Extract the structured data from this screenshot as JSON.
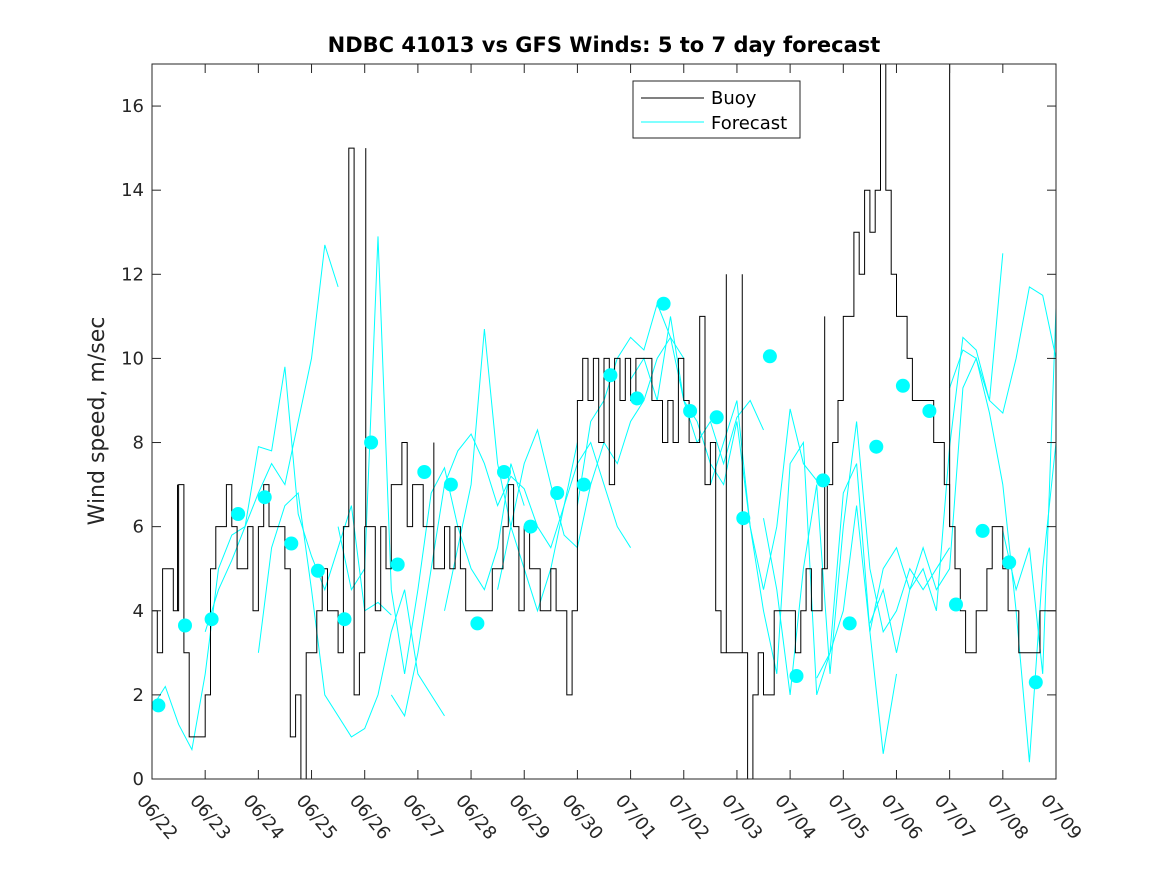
{
  "chart_data": {
    "type": "line",
    "title": "NDBC 41013 vs GFS Winds: 5 to 7 day forecast",
    "ylabel": "Wind speed, m/sec",
    "xlabel": "",
    "ylim": [
      0,
      17
    ],
    "yticks": [
      0,
      2,
      4,
      6,
      8,
      10,
      12,
      14,
      16
    ],
    "x_tick_labels": [
      "06/22",
      "06/23",
      "06/24",
      "06/25",
      "06/26",
      "06/27",
      "06/28",
      "06/29",
      "06/30",
      "07/01",
      "07/02",
      "07/03",
      "07/04",
      "07/05",
      "07/06",
      "07/07",
      "07/08",
      "07/09"
    ],
    "xlim_days": [
      0,
      17
    ],
    "legend": {
      "placement": "top-center",
      "entries": [
        "Buoy",
        "Forecast"
      ]
    },
    "colors": {
      "buoy": "#000000",
      "forecast": "#00ffff",
      "axes": "#262626"
    },
    "buoy_series": {
      "name": "Buoy",
      "x_days": [
        0,
        0.1,
        0.2,
        0.3,
        0.4,
        0.5,
        0.6,
        0.7,
        0.8,
        0.9,
        1.0,
        1.1,
        1.2,
        1.3,
        1.4,
        1.5,
        1.6,
        1.7,
        1.8,
        1.9,
        2.0,
        2.1,
        2.2,
        2.3,
        2.4,
        2.5,
        2.6,
        2.7,
        2.8,
        2.9,
        3.0,
        3.1,
        3.2,
        3.3,
        3.4,
        3.5,
        3.6,
        3.7,
        3.8,
        3.9,
        4.0,
        4.1,
        4.2,
        4.3,
        4.4,
        4.5,
        4.6,
        4.7,
        4.8,
        4.9,
        5.0,
        5.1,
        5.2,
        5.3,
        5.4,
        5.5,
        5.6,
        5.7,
        5.8,
        5.9,
        6.0,
        6.1,
        6.2,
        6.3,
        6.4,
        6.5,
        6.6,
        6.7,
        6.8,
        6.9,
        7.0,
        7.1,
        7.2,
        7.3,
        7.4,
        7.5,
        7.6,
        7.7,
        7.8,
        7.9,
        8.0,
        8.1,
        8.2,
        8.3,
        8.4,
        8.5,
        8.6,
        8.7,
        8.8,
        8.9,
        9.0,
        9.1,
        9.2,
        9.3,
        9.4,
        9.5,
        9.6,
        9.7,
        9.8,
        9.9,
        10.0,
        10.1,
        10.2,
        10.3,
        10.4,
        10.5,
        10.6,
        10.7,
        10.8,
        10.9,
        11.0,
        11.1,
        11.2,
        11.3,
        11.4,
        11.5,
        11.6,
        11.7,
        11.8,
        11.9,
        12.0,
        12.1,
        12.2,
        12.3,
        12.4,
        12.5,
        12.6,
        12.7,
        12.8,
        12.9,
        13.0,
        13.1,
        13.2,
        13.3,
        13.4,
        13.5,
        13.6,
        13.7,
        13.8,
        13.9,
        14.0,
        14.1,
        14.2,
        14.3,
        14.4,
        14.5,
        14.6,
        14.7,
        14.8,
        14.9,
        15.0,
        15.1,
        15.2,
        15.3,
        15.4,
        15.5,
        15.6,
        15.7,
        15.8,
        15.9,
        16.0,
        16.1,
        16.2,
        16.3,
        16.4,
        16.5,
        16.6,
        16.7,
        16.8,
        16.9
      ],
      "values": [
        4,
        3,
        5,
        5,
        4,
        7,
        3,
        1,
        1,
        1,
        2,
        5,
        6,
        6,
        7,
        6,
        5,
        5,
        6,
        4,
        6,
        7,
        6,
        6,
        6,
        5,
        1,
        2,
        0,
        3,
        3,
        4,
        5,
        4,
        4,
        3,
        6,
        15,
        2,
        3,
        6,
        6,
        4,
        6,
        5,
        7,
        7,
        8,
        6,
        7,
        7,
        6,
        6,
        5,
        5,
        6,
        5,
        6,
        5,
        4,
        4,
        4,
        4,
        4,
        5,
        5,
        6,
        7,
        6,
        4,
        6,
        5,
        5,
        4,
        4,
        5,
        4,
        4,
        2,
        4,
        9,
        10,
        9,
        10,
        8,
        10,
        7,
        10,
        9,
        10,
        9,
        10,
        10,
        10,
        9,
        9,
        8,
        9,
        8,
        10,
        9,
        8,
        8,
        11,
        7,
        8,
        4,
        3,
        3,
        3,
        3,
        3,
        0,
        2,
        3,
        2,
        2,
        4,
        4,
        4,
        4,
        3,
        4,
        5,
        4,
        4,
        5,
        7,
        8,
        9,
        11,
        11,
        13,
        12,
        14,
        13,
        14,
        17,
        14,
        12,
        11,
        11,
        10,
        9,
        9,
        9,
        9,
        8,
        8,
        7,
        6,
        5,
        4,
        3,
        3,
        4,
        4,
        5,
        6,
        6,
        5,
        4,
        4,
        3,
        3,
        3,
        3,
        4,
        4,
        4
      ],
      "spikes": [
        {
          "x_day": 0.48,
          "value": 7
        },
        {
          "x_day": 4.02,
          "value": 15
        },
        {
          "x_day": 5.3,
          "value": 8
        },
        {
          "x_day": 10.8,
          "value": 12
        },
        {
          "x_day": 11.1,
          "value": 12
        },
        {
          "x_day": 12.65,
          "value": 11
        },
        {
          "x_day": 15.0,
          "value": 17
        }
      ]
    },
    "forecast_series": [
      {
        "x_days": [
          0,
          0.25,
          0.5,
          0.75,
          1.0,
          1.25,
          1.5,
          1.75,
          2.0,
          2.25,
          2.5,
          2.75,
          3.0,
          3.25,
          3.5
        ],
        "values": [
          1.7,
          2.2,
          1.3,
          0.7,
          2.5,
          5.0,
          5.8,
          6.0,
          6.8,
          7.5,
          7.0,
          8.5,
          10.0,
          12.7,
          11.7
        ]
      },
      {
        "x_days": [
          1.0,
          1.25,
          1.5,
          1.75,
          2.0,
          2.25,
          2.5,
          2.75,
          3.0,
          3.25,
          3.5,
          3.75,
          4.0,
          4.25,
          4.5
        ],
        "values": [
          3.5,
          4.5,
          5.2,
          6.0,
          7.9,
          7.8,
          9.8,
          6.3,
          5.3,
          4.5,
          5.5,
          6.5,
          4.0,
          4.2,
          3.9
        ]
      },
      {
        "x_days": [
          2.0,
          2.25,
          2.5,
          2.75,
          3.0,
          3.25,
          3.5,
          3.75,
          4.0,
          4.25,
          4.5,
          4.75,
          5.0,
          5.25,
          5.5
        ],
        "values": [
          3.0,
          5.5,
          6.5,
          6.8,
          4.5,
          2.0,
          1.5,
          1.0,
          1.2,
          2.0,
          3.5,
          4.5,
          2.5,
          2.0,
          1.5
        ]
      },
      {
        "x_days": [
          3.5,
          3.75,
          4.0,
          4.25,
          4.5,
          4.75,
          5.0,
          5.25,
          5.5,
          5.75,
          6.0,
          6.25,
          6.5,
          6.75,
          7.0
        ],
        "values": [
          6.0,
          4.5,
          5.0,
          12.9,
          4.5,
          2.5,
          4.5,
          6.8,
          7.4,
          6.0,
          5.0,
          4.5,
          5.5,
          7.5,
          6.5
        ]
      },
      {
        "x_days": [
          4.5,
          4.75,
          5.0,
          5.25,
          5.5,
          5.75,
          6.0,
          6.25,
          6.5,
          6.75,
          7.0,
          7.25,
          7.5,
          7.75,
          8.0
        ],
        "values": [
          2.0,
          1.5,
          3.0,
          5.0,
          7.0,
          7.8,
          8.2,
          7.5,
          6.5,
          7.2,
          6.9,
          6.0,
          5.5,
          6.5,
          8.0
        ]
      },
      {
        "x_days": [
          5.5,
          5.75,
          6.0,
          6.25,
          6.5,
          6.75,
          7.0,
          7.25,
          7.5,
          7.75,
          8.0,
          8.25,
          8.5,
          8.75,
          9.0
        ],
        "values": [
          4.0,
          5.5,
          7.0,
          10.7,
          7.5,
          6.0,
          5.0,
          4.0,
          5.0,
          6.5,
          7.5,
          8.0,
          7.0,
          6.0,
          5.5
        ]
      },
      {
        "x_days": [
          6.5,
          6.75,
          7.0,
          7.25,
          7.5,
          7.75,
          8.0,
          8.25,
          8.5,
          8.75,
          9.0,
          9.25,
          9.5,
          9.75,
          10.0
        ],
        "values": [
          4.5,
          6.0,
          7.5,
          8.3,
          7.0,
          5.8,
          5.5,
          7.0,
          8.0,
          7.5,
          8.5,
          9.0,
          10.0,
          10.5,
          10.0
        ]
      },
      {
        "x_days": [
          8.0,
          8.25,
          8.5,
          8.75,
          9.0,
          9.25,
          9.5,
          9.75,
          10.0,
          10.25,
          10.5,
          10.75,
          11.0,
          11.25,
          11.5
        ],
        "values": [
          6.5,
          8.5,
          9.0,
          10.0,
          10.5,
          10.2,
          11.3,
          10.5,
          9.0,
          8.0,
          8.5,
          7.5,
          8.6,
          9.0,
          8.3
        ]
      },
      {
        "x_days": [
          9.0,
          9.25,
          9.5,
          9.75,
          10.0,
          10.25,
          10.5,
          10.75,
          11.0,
          11.25,
          11.5,
          11.75,
          12.0,
          12.25,
          12.5
        ],
        "values": [
          9.5,
          10.0,
          9.0,
          11.0,
          9.0,
          8.5,
          7.5,
          7.0,
          8.5,
          6.0,
          4.5,
          6.0,
          8.8,
          7.5,
          7.1
        ]
      },
      {
        "x_days": [
          10.5,
          10.75,
          11.0,
          11.25,
          11.5,
          11.75,
          12.0,
          12.25,
          12.5,
          12.75,
          13.0,
          13.25,
          13.5,
          13.75,
          14.0
        ],
        "values": [
          7.0,
          8.0,
          9.0,
          6.0,
          4.0,
          2.5,
          7.5,
          8.0,
          2.0,
          3.0,
          6.8,
          7.5,
          3.5,
          0.6,
          2.5
        ]
      },
      {
        "x_days": [
          11.5,
          11.75,
          12.0,
          12.25,
          12.5,
          12.75,
          13.0,
          13.25,
          13.5,
          13.75,
          14.0,
          14.25,
          14.5,
          14.75,
          15.0
        ],
        "values": [
          6.2,
          4.5,
          2.0,
          5.0,
          7.0,
          2.5,
          6.0,
          8.5,
          5.0,
          3.5,
          4.0,
          5.0,
          4.5,
          5.0,
          5.5
        ]
      },
      {
        "x_days": [
          12.5,
          12.75,
          13.0,
          13.25,
          13.5,
          13.75,
          14.0,
          14.25,
          14.5,
          14.75,
          15.0,
          15.25,
          15.5,
          15.75,
          16.0
        ],
        "values": [
          2.4,
          3.0,
          4.0,
          6.5,
          3.5,
          5.0,
          5.5,
          4.5,
          5.0,
          4.0,
          7.9,
          10.5,
          10.2,
          9.0,
          12.5
        ]
      },
      {
        "x_days": [
          13.5,
          13.75,
          14.0,
          14.25,
          14.5,
          14.75,
          15.0,
          15.25,
          15.5,
          15.75,
          16.0,
          16.25,
          16.5,
          16.75,
          17.0
        ],
        "values": [
          3.7,
          4.5,
          3.0,
          4.5,
          5.5,
          4.5,
          5.0,
          9.3,
          10.0,
          8.7,
          7.0,
          4.0,
          0.4,
          5.0,
          8.0
        ]
      },
      {
        "x_days": [
          15.0,
          15.25,
          15.5,
          15.75,
          16.0,
          16.25,
          16.5,
          16.75,
          17.0
        ],
        "values": [
          9.3,
          10.2,
          10.0,
          9.0,
          8.7,
          10.0,
          11.7,
          11.5,
          10.0
        ]
      },
      {
        "x_days": [
          16.0,
          16.25,
          16.5,
          16.75,
          17.0
        ],
        "values": [
          5.9,
          4.5,
          5.5,
          2.5,
          11.2
        ]
      }
    ],
    "forecast_markers": {
      "x_days": [
        0.12,
        0.62,
        1.12,
        1.62,
        2.12,
        2.62,
        3.12,
        3.62,
        4.12,
        4.62,
        5.12,
        5.62,
        6.12,
        6.62,
        7.12,
        7.62,
        8.12,
        8.62,
        9.12,
        9.62,
        10.12,
        10.62,
        11.12,
        11.62,
        12.12,
        12.62,
        13.12,
        13.62,
        14.12,
        14.62,
        15.12,
        15.62,
        16.12,
        16.62
      ],
      "values": [
        1.75,
        3.65,
        3.8,
        6.3,
        6.7,
        5.6,
        4.95,
        3.8,
        8.0,
        5.1,
        7.3,
        7.0,
        3.7,
        7.3,
        6.0,
        6.8,
        7.0,
        9.6,
        9.05,
        11.3,
        8.75,
        8.6,
        6.2,
        10.05,
        2.45,
        7.1,
        3.7,
        7.9,
        9.35,
        8.75,
        4.15,
        5.9,
        5.15,
        2.3
      ]
    }
  }
}
